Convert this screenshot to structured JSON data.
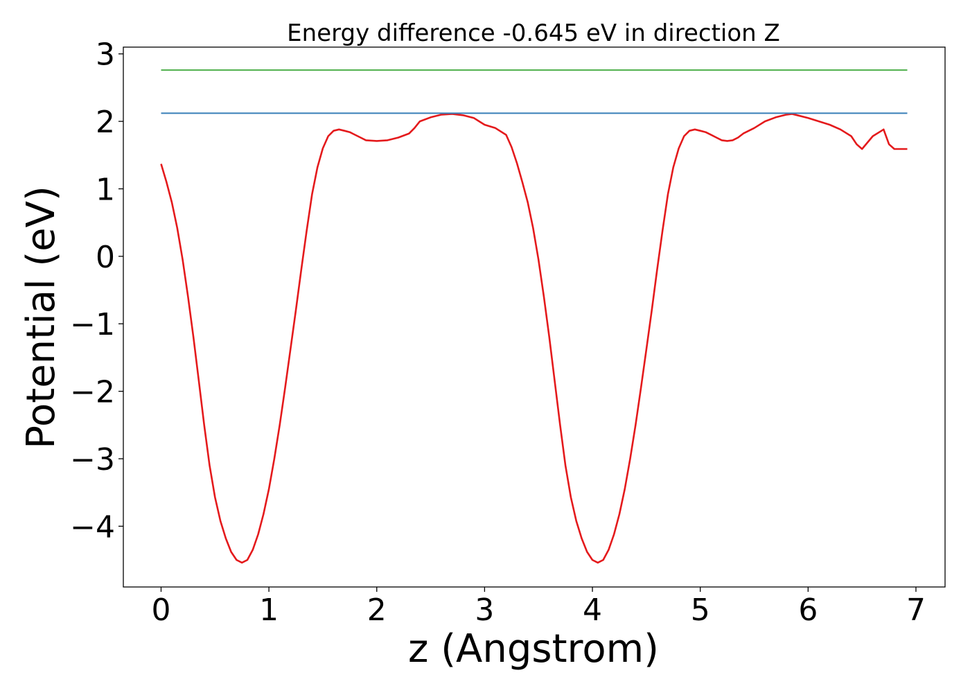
{
  "chart_data": {
    "type": "line",
    "title": "Energy difference -0.645 eV in direction Z",
    "xlabel": "z (Angstrom)",
    "ylabel": "Potential (eV)",
    "xlim": [
      -0.35,
      7.27
    ],
    "ylim": [
      -4.9,
      3.1
    ],
    "xticks": [
      0,
      1,
      2,
      3,
      4,
      5,
      6,
      7
    ],
    "xtick_labels": [
      "0",
      "1",
      "2",
      "3",
      "4",
      "5",
      "6",
      "7"
    ],
    "yticks": [
      3,
      2,
      1,
      0,
      -1,
      -2,
      -3,
      -4
    ],
    "ytick_labels": [
      "3",
      "2",
      "1",
      "0",
      "−1",
      "−2",
      "−3",
      "−4"
    ],
    "grid": false,
    "series": [
      {
        "color": "#e41a1c",
        "x": [
          0.0,
          0.05,
          0.1,
          0.15,
          0.2,
          0.25,
          0.3,
          0.35,
          0.4,
          0.45,
          0.5,
          0.55,
          0.6,
          0.65,
          0.7,
          0.75,
          0.8,
          0.85,
          0.9,
          0.95,
          1.0,
          1.05,
          1.1,
          1.15,
          1.2,
          1.25,
          1.3,
          1.35,
          1.4,
          1.45,
          1.5,
          1.55,
          1.6,
          1.65,
          1.7,
          1.75,
          1.8,
          1.85,
          1.9,
          2.0,
          2.1,
          2.2,
          2.3,
          2.35,
          2.4,
          2.5,
          2.6,
          2.7,
          2.8,
          2.9,
          2.95,
          3.0,
          3.1,
          3.2,
          3.25,
          3.3,
          3.35,
          3.4,
          3.45,
          3.5,
          3.55,
          3.6,
          3.65,
          3.7,
          3.75,
          3.8,
          3.85,
          3.9,
          3.95,
          4.0,
          4.05,
          4.1,
          4.15,
          4.2,
          4.25,
          4.3,
          4.35,
          4.4,
          4.45,
          4.5,
          4.55,
          4.6,
          4.65,
          4.7,
          4.75,
          4.8,
          4.85,
          4.9,
          4.95,
          5.0,
          5.05,
          5.1,
          5.15,
          5.2,
          5.25,
          5.3,
          5.35,
          5.4,
          5.5,
          5.6,
          5.7,
          5.8,
          5.85,
          5.9,
          6.0,
          6.1,
          6.2,
          6.3,
          6.4,
          6.45,
          6.5,
          6.6,
          6.7,
          6.75,
          6.8,
          6.85,
          6.9,
          6.92
        ],
        "y": [
          1.37,
          1.1,
          0.8,
          0.42,
          -0.05,
          -0.6,
          -1.2,
          -1.85,
          -2.5,
          -3.1,
          -3.57,
          -3.92,
          -4.18,
          -4.38,
          -4.5,
          -4.54,
          -4.5,
          -4.35,
          -4.12,
          -3.82,
          -3.45,
          -3.0,
          -2.5,
          -1.95,
          -1.38,
          -0.8,
          -0.2,
          0.38,
          0.92,
          1.32,
          1.6,
          1.78,
          1.86,
          1.88,
          1.86,
          1.84,
          1.8,
          1.76,
          1.72,
          1.71,
          1.72,
          1.76,
          1.82,
          1.9,
          2.0,
          2.06,
          2.1,
          2.11,
          2.09,
          2.05,
          2.0,
          1.95,
          1.9,
          1.8,
          1.62,
          1.38,
          1.1,
          0.8,
          0.42,
          -0.05,
          -0.6,
          -1.2,
          -1.85,
          -2.5,
          -3.1,
          -3.57,
          -3.92,
          -4.18,
          -4.38,
          -4.5,
          -4.54,
          -4.5,
          -4.35,
          -4.12,
          -3.82,
          -3.45,
          -3.0,
          -2.5,
          -1.95,
          -1.38,
          -0.8,
          -0.2,
          0.38,
          0.92,
          1.32,
          1.6,
          1.78,
          1.86,
          1.88,
          1.86,
          1.84,
          1.8,
          1.76,
          1.72,
          1.71,
          1.72,
          1.76,
          1.82,
          1.9,
          2.0,
          2.06,
          2.1,
          2.11,
          2.09,
          2.05,
          2.0,
          1.95,
          1.88,
          1.78,
          1.66,
          1.59,
          1.78,
          1.88,
          1.66,
          1.59,
          1.59,
          1.59,
          1.59
        ]
      },
      {
        "color": "#377eb8",
        "x": [
          0.0,
          6.92
        ],
        "y": [
          2.12,
          2.12
        ]
      },
      {
        "color": "#4daf4a",
        "x": [
          0.0,
          6.92
        ],
        "y": [
          2.76,
          2.76
        ]
      }
    ]
  }
}
